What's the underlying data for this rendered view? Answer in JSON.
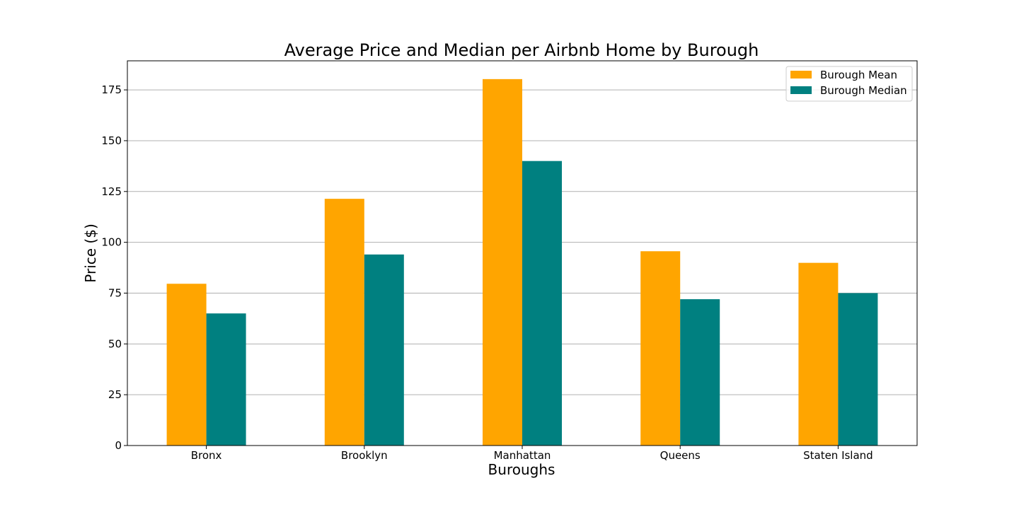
{
  "chart_data": {
    "type": "bar",
    "title": "Average Price and Median per Airbnb Home by Burough",
    "xlabel": "Buroughs",
    "ylabel": "Price ($)",
    "categories": [
      "Bronx",
      "Brooklyn",
      "Manhattan",
      "Queens",
      "Staten Island"
    ],
    "series": [
      {
        "name": "Burough Mean",
        "color": "#FFA500",
        "values": [
          79.6,
          121.4,
          180.3,
          95.6,
          89.9
        ]
      },
      {
        "name": "Burough Median",
        "color": "#008080",
        "values": [
          65,
          94,
          140,
          72,
          75
        ]
      }
    ],
    "ylim": [
      0,
      189.3
    ],
    "yticks": [
      0,
      25,
      50,
      75,
      100,
      125,
      150,
      175
    ],
    "grid": "horizontal",
    "legend_position": "top-right"
  }
}
